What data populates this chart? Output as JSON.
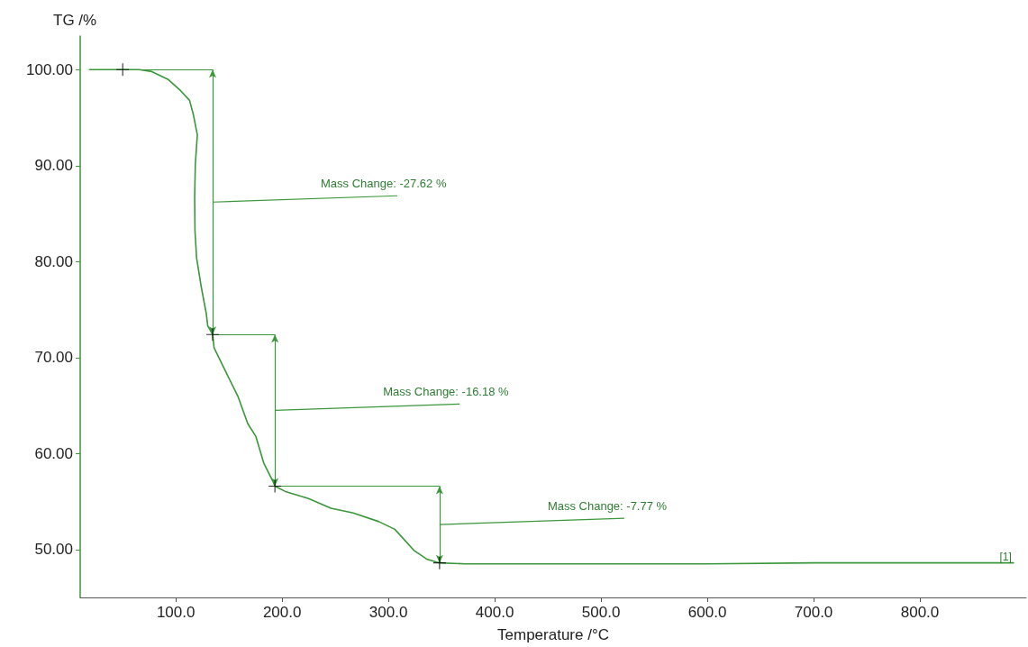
{
  "chart_data": {
    "type": "line",
    "xlabel": "Temperature /°C",
    "ylabel": "TG /%",
    "xlim": [
      10,
      900
    ],
    "ylim": [
      45,
      103.5
    ],
    "xticks": [
      {
        "value": 100,
        "label": "100.0"
      },
      {
        "value": 200,
        "label": "200.0"
      },
      {
        "value": 300,
        "label": "300.0"
      },
      {
        "value": 400,
        "label": "400.0"
      },
      {
        "value": 500,
        "label": "500.0"
      },
      {
        "value": 600,
        "label": "600.0"
      },
      {
        "value": 700,
        "label": "700.0"
      },
      {
        "value": 800,
        "label": "800.0"
      }
    ],
    "yticks": [
      {
        "value": 50,
        "label": "50.00"
      },
      {
        "value": 60,
        "label": "60.00"
      },
      {
        "value": 70,
        "label": "70.00"
      },
      {
        "value": 80,
        "label": "80.00"
      },
      {
        "value": 90,
        "label": "90.00"
      },
      {
        "value": 100,
        "label": "100.00"
      }
    ],
    "grid": false,
    "series": [
      {
        "color": "#3a973a",
        "marker": "none",
        "line_style": "solid",
        "x": [
          18.8,
          50.4,
          65.4,
          77.4,
          92.5,
          104.5,
          112.9,
          116.5,
          120.2,
          118.3,
          117.7,
          118,
          119.5,
          124,
          128.6,
          130,
          134.6,
          136,
          146.6,
          158.6,
          167.7,
          175.2,
          182.7,
          191.7,
          193.2,
          203.8,
          224.8,
          245.9,
          266.9,
          291,
          306,
          324,
          336,
          348.1,
          372,
          500,
          600,
          700,
          800,
          888
        ],
        "values": [
          100,
          100,
          100,
          99.8,
          99,
          97.8,
          96.8,
          95.3,
          93.2,
          90.1,
          86.7,
          83.2,
          80.4,
          77.3,
          74.6,
          73.3,
          72.4,
          71,
          68.6,
          65.9,
          63.1,
          61.8,
          59,
          57,
          56.6,
          56,
          55.3,
          54.3,
          53.8,
          52.9,
          52.1,
          49.9,
          49,
          48.6,
          48.5,
          48.5,
          48.5,
          48.6,
          48.6,
          48.6
        ]
      },
      {
        "type": "scatter",
        "color": "#000000",
        "marker": "cross",
        "x": [
          50,
          134.6,
          193.2,
          348.1
        ],
        "values": [
          100,
          72.4,
          56.6,
          48.6
        ]
      }
    ],
    "annotations": [
      "Mass Change: -27.62 %",
      "Mass Change: -16.18 %",
      "Mass Change: -7.77 %",
      "[1]"
    ]
  }
}
